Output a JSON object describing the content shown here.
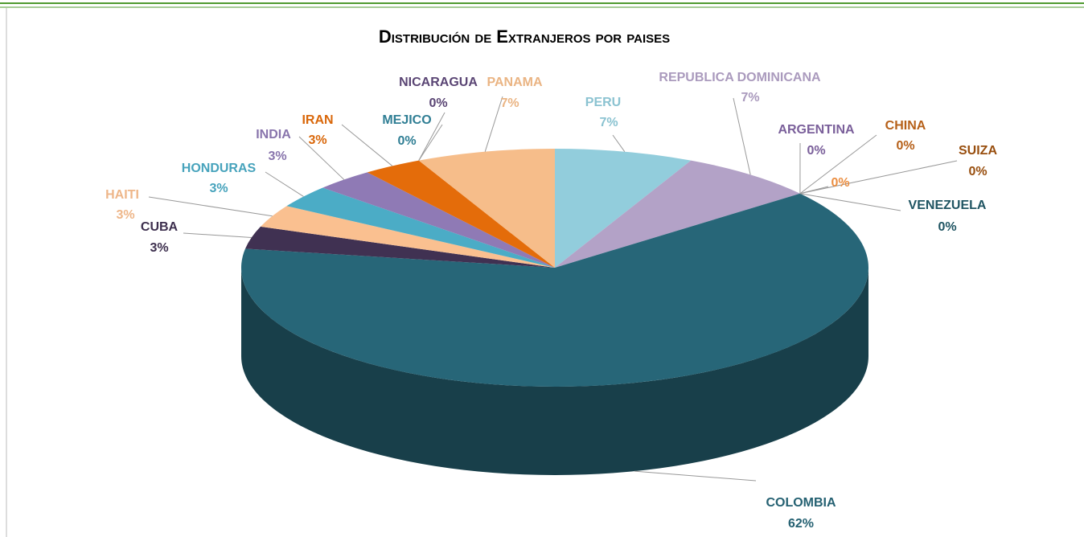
{
  "chart_data": {
    "type": "pie3d",
    "title": "Distribución de Extranjeros por paises",
    "categories": [
      "PERU",
      "REPUBLICA DOMINICANA",
      "ARGENTINA",
      "CHINA",
      "SUIZA",
      null,
      "VENEZUELA",
      "COLOMBIA",
      "CUBA",
      "HAITI",
      "HONDURAS",
      "INDIA",
      "IRAN",
      "MEJICO",
      "NICARAGUA",
      "PANAMA"
    ],
    "values": [
      7,
      7,
      0,
      0,
      0,
      0,
      0,
      62,
      3,
      3,
      3,
      3,
      3,
      0,
      0,
      7
    ],
    "value_labels": [
      "7%",
      "7%",
      "0%",
      "0%",
      "0%",
      "0%",
      "0%",
      "62%",
      "3%",
      "3%",
      "3%",
      "3%",
      "3%",
      "0%",
      "0%",
      "7%"
    ],
    "colors": [
      "#92cddc",
      "#b3a2c7",
      "#8064a2",
      "#c0651a",
      "#a0520f",
      "#f79646",
      "#215867",
      "#276678",
      "#403152",
      "#fac090",
      "#4bacc6",
      "#8f7ab5",
      "#e46c0a",
      "#31859c",
      "#5f497a",
      "#f6bd8a"
    ]
  }
}
